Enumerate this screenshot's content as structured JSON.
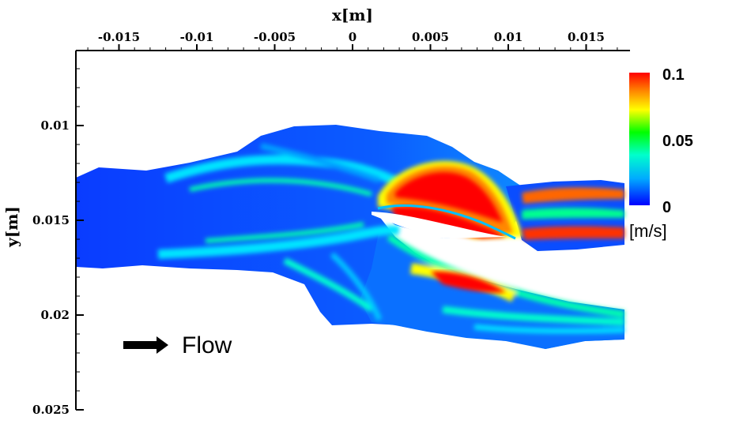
{
  "chart_data": {
    "type": "heatmap",
    "title": "",
    "xlabel": "x[m]",
    "ylabel": "y[m]",
    "xlim": [
      -0.0178,
      0.0178
    ],
    "ylim": [
      0.025,
      0.0065
    ],
    "x_ticks": [
      {
        "value": -0.015,
        "label": "-0.015"
      },
      {
        "value": -0.01,
        "label": "-0.01"
      },
      {
        "value": -0.005,
        "label": "-0.005"
      },
      {
        "value": 0,
        "label": "0"
      },
      {
        "value": 0.005,
        "label": "0.005"
      },
      {
        "value": 0.01,
        "label": "0.01"
      },
      {
        "value": 0.015,
        "label": "0.015"
      }
    ],
    "y_ticks": [
      {
        "value": 0.01,
        "label": "0.01"
      },
      {
        "value": 0.015,
        "label": "0.015"
      },
      {
        "value": 0.02,
        "label": "0.02"
      },
      {
        "value": 0.025,
        "label": "0.025"
      }
    ],
    "colorbar": {
      "min": 0,
      "max": 0.1,
      "ticks": [
        {
          "value": 0.1,
          "label": "0.1"
        },
        {
          "value": 0.05,
          "label": "0.05"
        },
        {
          "value": 0,
          "label": "0"
        }
      ],
      "unit": "[m/s]",
      "colors": [
        "#0000ff",
        "#00aaff",
        "#00ffcc",
        "#00ff00",
        "#ffff00",
        "#ff8800",
        "#ff0000"
      ]
    },
    "annotation": {
      "text": "Flow",
      "arrow": "right"
    },
    "field_regions": [
      {
        "name": "inlet-jet",
        "level": 0.01
      },
      {
        "name": "upper-shear-layer",
        "level": 0.04
      },
      {
        "name": "lower-shear-layer",
        "level": 0.035
      },
      {
        "name": "upper-branch-core-a",
        "level": 0.1
      },
      {
        "name": "upper-branch-core-b",
        "level": 0.1
      },
      {
        "name": "lower-branch-core",
        "level": 0.1
      },
      {
        "name": "upper-outlet-core",
        "level": 0.08
      },
      {
        "name": "lower-outlet-stream",
        "level": 0.045
      }
    ]
  }
}
